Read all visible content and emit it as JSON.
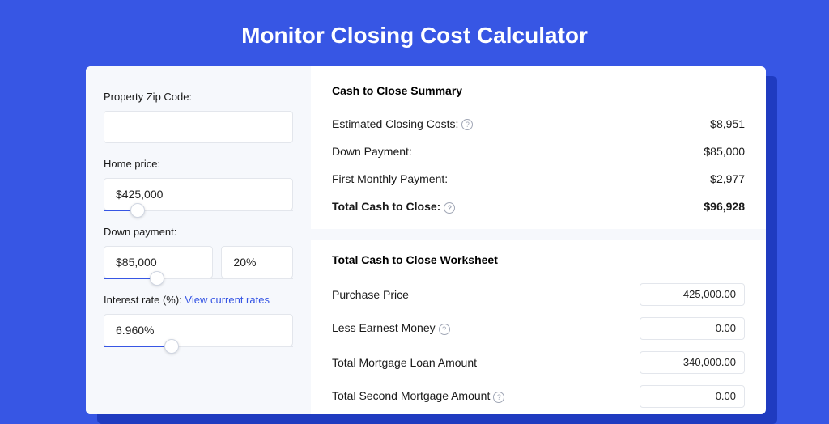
{
  "colors": {
    "page_bg": "#3756e4",
    "card_shadow": "#1f3bc0",
    "card_bg": "#ffffff",
    "left_bg": "#f6f8fc",
    "border": "#e3e6ec",
    "text": "#1a1a1a",
    "link": "#3756e4",
    "help_border": "#a0a6b5"
  },
  "header": {
    "title": "Monitor Closing Cost Calculator"
  },
  "left": {
    "zip": {
      "label": "Property Zip Code:",
      "value": ""
    },
    "home_price": {
      "label": "Home price:",
      "value": "$425,000",
      "slider_fill_pct": 18,
      "thumb_pct": 18
    },
    "down_payment": {
      "label": "Down payment:",
      "amount": "$85,000",
      "percent": "20%",
      "slider_fill_pct": 28,
      "thumb_pct": 28
    },
    "interest": {
      "label_prefix": "Interest rate (%): ",
      "link_text": "View current rates",
      "value": "6.960%",
      "slider_fill_pct": 36,
      "thumb_pct": 36
    }
  },
  "summary": {
    "title": "Cash to Close Summary",
    "rows": [
      {
        "label": "Estimated Closing Costs:",
        "help": true,
        "value": "$8,951"
      },
      {
        "label": "Down Payment:",
        "help": false,
        "value": "$85,000"
      },
      {
        "label": "First Monthly Payment:",
        "help": false,
        "value": "$2,977"
      }
    ],
    "total": {
      "label": "Total Cash to Close:",
      "help": true,
      "value": "$96,928"
    }
  },
  "worksheet": {
    "title": "Total Cash to Close Worksheet",
    "rows": [
      {
        "label": "Purchase Price",
        "help": false,
        "value": "425,000.00"
      },
      {
        "label": "Less Earnest Money",
        "help": true,
        "value": "0.00"
      },
      {
        "label": "Total Mortgage Loan Amount",
        "help": false,
        "value": "340,000.00"
      },
      {
        "label": "Total Second Mortgage Amount",
        "help": true,
        "value": "0.00"
      }
    ]
  }
}
